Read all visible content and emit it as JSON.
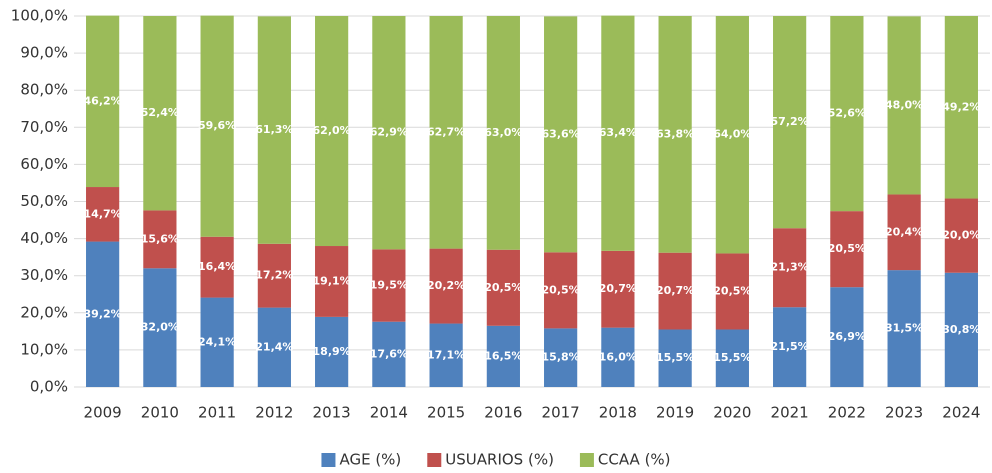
{
  "chart_data": {
    "type": "stacked_bar",
    "categories": [
      "2009",
      "2010",
      "2011",
      "2012",
      "2013",
      "2014",
      "2015",
      "2016",
      "2017",
      "2018",
      "2019",
      "2020",
      "2021",
      "2022",
      "2023",
      "2024"
    ],
    "series": [
      {
        "name": "AGE (%)",
        "color": "#4f81bd",
        "values": [
          39.2,
          32.0,
          24.1,
          21.4,
          18.9,
          17.6,
          17.1,
          16.5,
          15.8,
          16.0,
          15.5,
          15.5,
          21.5,
          26.9,
          31.5,
          30.8
        ],
        "value_labels": [
          "39,2%",
          "32,0%",
          "24,1%",
          "21,4%",
          "18,9%",
          "17,6%",
          "17,1%",
          "16,5%",
          "15,8%",
          "16,0%",
          "15,5%",
          "15,5%",
          "21,5%",
          "26,9%",
          "31,5%",
          "30,8%"
        ]
      },
      {
        "name": "USUARIOS (%)",
        "color": "#c0504d",
        "values": [
          14.7,
          15.6,
          16.4,
          17.2,
          19.1,
          19.5,
          20.2,
          20.5,
          20.5,
          20.7,
          20.7,
          20.5,
          21.3,
          20.5,
          20.4,
          20.0
        ],
        "value_labels": [
          "14,7%",
          "15,6%",
          "16,4%",
          "17,2%",
          "19,1%",
          "19,5%",
          "20,2%",
          "20,5%",
          "20,5%",
          "20,7%",
          "20,7%",
          "20,5%",
          "21,3%",
          "20,5%",
          "20,4%",
          "20,0%"
        ]
      },
      {
        "name": "CCAA (%)",
        "color": "#9bbb59",
        "values": [
          46.2,
          52.4,
          59.6,
          61.3,
          62.0,
          62.9,
          62.7,
          63.0,
          63.6,
          63.4,
          63.8,
          64.0,
          57.2,
          52.6,
          48.0,
          49.2
        ],
        "value_labels": [
          "46,2%",
          "52,4%",
          "59,6%",
          "61,3%",
          "62,0%",
          "62,9%",
          "62,7%",
          "63,0%",
          "63,6%",
          "63,4%",
          "63,8%",
          "64,0%",
          "57,2%",
          "52,6%",
          "48,0%",
          "49,2%"
        ]
      }
    ],
    "ylim": [
      0,
      100
    ],
    "yticks": [
      {
        "value": 0,
        "label": "0,0%"
      },
      {
        "value": 10,
        "label": "10,0%"
      },
      {
        "value": 20,
        "label": "20,0%"
      },
      {
        "value": 30,
        "label": "30,0%"
      },
      {
        "value": 40,
        "label": "40,0%"
      },
      {
        "value": 50,
        "label": "50,0%"
      },
      {
        "value": 60,
        "label": "60,0%"
      },
      {
        "value": 70,
        "label": "70,0%"
      },
      {
        "value": 80,
        "label": "80,0%"
      },
      {
        "value": 90,
        "label": "90,0%"
      },
      {
        "value": 100,
        "label": "100,0%"
      }
    ],
    "grid": true,
    "legend": "bottom"
  }
}
